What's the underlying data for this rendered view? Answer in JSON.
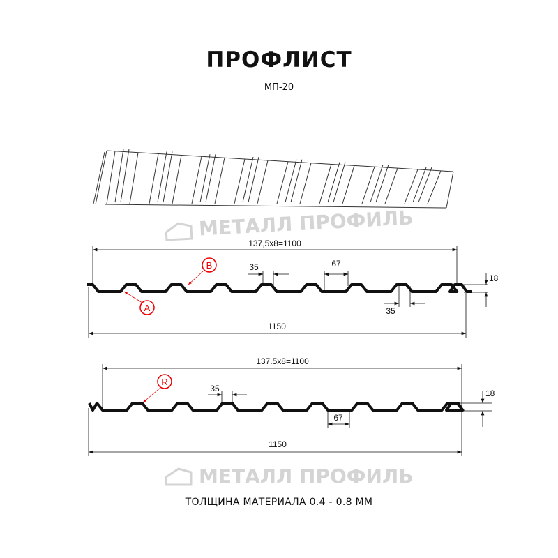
{
  "header": {
    "title": "ПРОФЛИСТ",
    "subtitle": "МП-20"
  },
  "watermark": {
    "text": "МЕТАЛЛ ПРОФИЛЬ"
  },
  "profile_top": {
    "pitch_label": "137,5x8=1100",
    "width_label": "1150",
    "top_rib_label": "35",
    "bottom_rib_label": "35",
    "trough_label": "67",
    "height_label": "18",
    "markers": [
      "A",
      "B"
    ]
  },
  "profile_bottom": {
    "pitch_label": "137.5x8=1100",
    "width_label": "1150",
    "top_rib_label": "35",
    "trough_label": "67",
    "height_label": "18",
    "markers": [
      "R"
    ]
  },
  "footer": {
    "thickness": "ТОЛЩИНА МАТЕРИАЛА 0.4 - 0.8 ММ"
  },
  "colors": {
    "marker": "#e00000",
    "line": "#111111",
    "watermark": "#d4d4d4"
  }
}
